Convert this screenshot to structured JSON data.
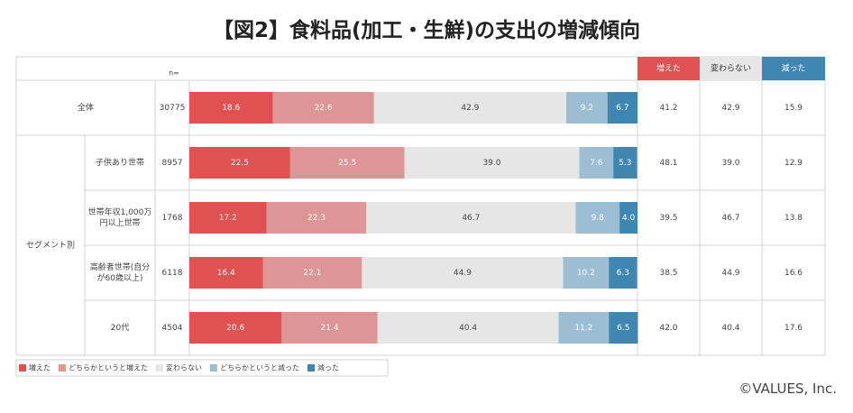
{
  "title": "【図2】食料品(加工・生鮮)の支出の増減傾向",
  "credit": "©VALUES, Inc.",
  "n_label": "n=",
  "segment_group_label": "セグメント別",
  "summary_headers": [
    "増えた",
    "変わらない",
    "減った"
  ],
  "chart_data": {
    "type": "bar",
    "stacked": true,
    "orientation": "horizontal",
    "normalized_100": true,
    "categories": [
      "全体",
      "子供あり世帯",
      "世帯年収1,000万円以上世帯",
      "高齢者世帯(自分が60歳以上)",
      "20代"
    ],
    "category_lines": [
      [
        "全体"
      ],
      [
        "子供あり世帯"
      ],
      [
        "世帯年収1,000万",
        "円以上世帯"
      ],
      [
        "高齢者世帯(自分",
        "が60歳以上)"
      ],
      [
        "20代"
      ]
    ],
    "n": [
      "30775",
      "8957",
      "1768",
      "6118",
      "4504"
    ],
    "series": [
      {
        "name": "増えた",
        "color": "#e05252",
        "label_color": "#ffffff",
        "values": [
          18.6,
          22.5,
          17.2,
          16.4,
          20.6
        ]
      },
      {
        "name": "どちらかというと増えた",
        "color": "#dd9595",
        "label_color": "#ffffff",
        "values": [
          22.6,
          25.5,
          22.3,
          22.1,
          21.4
        ]
      },
      {
        "name": "変わらない",
        "color": "#e6e6e6",
        "label_color": "#444444",
        "values": [
          42.9,
          39.0,
          46.7,
          44.9,
          40.4
        ]
      },
      {
        "name": "どちらかというと減った",
        "color": "#9dbdd2",
        "label_color": "#ffffff",
        "values": [
          9.2,
          7.6,
          9.8,
          10.2,
          11.2
        ]
      },
      {
        "name": "減った",
        "color": "#3f86b1",
        "label_color": "#ffffff",
        "values": [
          6.7,
          5.3,
          4.0,
          6.3,
          6.5
        ]
      }
    ],
    "summary": {
      "columns": [
        "増えた",
        "変わらない",
        "減った"
      ],
      "colors": [
        "#e05252",
        "#e6e6e6",
        "#3f86b1"
      ],
      "header_text_colors": [
        "#ffffff",
        "#333333",
        "#ffffff"
      ],
      "values": [
        [
          "41.2",
          "42.9",
          "15.9"
        ],
        [
          "48.1",
          "39.0",
          "12.9"
        ],
        [
          "39.5",
          "46.7",
          "13.8"
        ],
        [
          "38.5",
          "44.9",
          "16.6"
        ],
        [
          "42.0",
          "40.4",
          "17.6"
        ]
      ]
    },
    "xlim": [
      0,
      100
    ],
    "legend_position": "bottom-left"
  }
}
